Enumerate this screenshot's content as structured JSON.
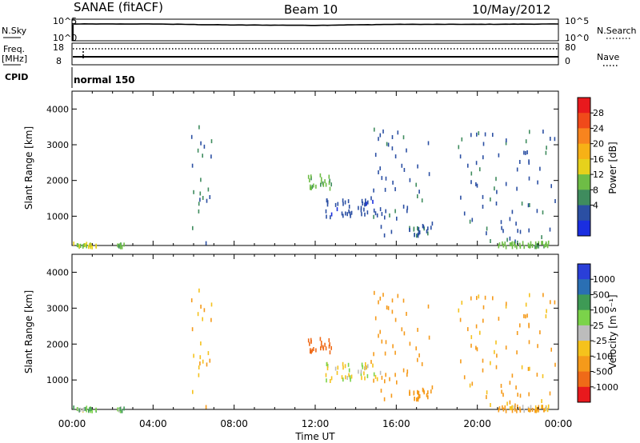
{
  "header": {
    "station": "SANAE (fitACF)",
    "beam": "Beam 10",
    "date": "10/May/2012"
  },
  "top_panels": {
    "nsky_label": "N.Sky",
    "nsearch_label": "N.Search",
    "freq_label": "Freq.",
    "freq_unit": "[MHz]",
    "nave_label": "Nave",
    "cpid_label": "CPID",
    "cpid_value": "normal 150",
    "noise_ticks_left": [
      "10^5",
      "10^0"
    ],
    "noise_ticks_right": [
      "10^5",
      "10^0"
    ],
    "freq_ticks": [
      "18",
      "8"
    ],
    "nave_ticks": [
      "80",
      "0"
    ],
    "freq_mhz": 10.5,
    "nave_level": 0.25
  },
  "x_axis": {
    "label": "Time UT",
    "ticks": [
      "00:00",
      "04:00",
      "08:00",
      "12:00",
      "16:00",
      "20:00",
      "00:00"
    ]
  },
  "colorbars": {
    "power": {
      "label": "Power [dB]",
      "ticks": [
        "28",
        "24",
        "20",
        "16",
        "12",
        "8",
        "4"
      ],
      "colors": [
        "#e8191d",
        "#f04a1a",
        "#f8841e",
        "#f7b116",
        "#e6d11c",
        "#6ebd46",
        "#3f8c5e",
        "#2b4fa3",
        "#1a2ee0"
      ]
    },
    "velocity": {
      "label": "Velocity [m s⁻¹]",
      "ticks": [
        "1000",
        "500",
        "100",
        "25",
        "-25",
        "-100",
        "-500",
        "-1000"
      ],
      "colors": [
        "#2a3fd8",
        "#2a6fb3",
        "#3e9a55",
        "#7bd34a",
        "#bcbcbc",
        "#f5c21c",
        "#f59a1a",
        "#ef6a18",
        "#e8191d"
      ]
    }
  },
  "chart_data": [
    {
      "type": "line",
      "title": "N.Sky / N.Search",
      "x": [
        "00:00",
        "04:00",
        "08:00",
        "12:00",
        "16:00",
        "20:00",
        "00:00"
      ],
      "series": [
        {
          "name": "N.Sky",
          "values": [
            5.0,
            5.0,
            4.7,
            4.6,
            4.9,
            4.9,
            5.0
          ]
        }
      ]
    },
    {
      "type": "scatter",
      "title": "Power [dB]",
      "xlabel": "Time UT",
      "ylabel": "Slant Range [km]",
      "xlim": [
        0,
        24
      ],
      "ylim": [
        180,
        4500
      ],
      "ylim_ticks": [
        1000,
        2000,
        3000,
        4000
      ],
      "legend": "right colorbar",
      "clusters": [
        {
          "t": [
            0.0,
            1.2
          ],
          "r": [
            180,
            300
          ],
          "value": 14
        },
        {
          "t": [
            2.2,
            2.6
          ],
          "r": [
            180,
            280
          ],
          "value": 12
        },
        {
          "t": [
            5.8,
            6.9
          ],
          "r": [
            180,
            3550
          ],
          "value": 6
        },
        {
          "t": [
            11.6,
            12.8
          ],
          "r": [
            1800,
            2200
          ],
          "value": 12
        },
        {
          "t": [
            12.5,
            15.2
          ],
          "r": [
            1000,
            1500
          ],
          "value": 5
        },
        {
          "t": [
            14.7,
            17.8
          ],
          "r": [
            500,
            3500
          ],
          "value": 6
        },
        {
          "t": [
            16.6,
            17.6
          ],
          "r": [
            500,
            800
          ],
          "value": 7
        },
        {
          "t": [
            19.0,
            23.9
          ],
          "r": [
            180,
            3500
          ],
          "value": 6
        },
        {
          "t": [
            21.0,
            23.5
          ],
          "r": [
            180,
            320
          ],
          "value": 12
        }
      ]
    },
    {
      "type": "scatter",
      "title": "Velocity [m s⁻¹]",
      "xlabel": "Time UT",
      "ylabel": "Slant Range [km]",
      "xlim": [
        0,
        24
      ],
      "ylim": [
        180,
        4500
      ],
      "ylim_ticks": [
        1000,
        2000,
        3000,
        4000
      ],
      "legend": "right colorbar",
      "clusters": [
        {
          "t": [
            0.0,
            1.2
          ],
          "r": [
            180,
            300
          ],
          "value": 60
        },
        {
          "t": [
            2.2,
            2.6
          ],
          "r": [
            180,
            280
          ],
          "value": 80
        },
        {
          "t": [
            5.8,
            6.9
          ],
          "r": [
            180,
            3550
          ],
          "value": -150
        },
        {
          "t": [
            11.6,
            12.8
          ],
          "r": [
            1800,
            2200
          ],
          "value": -600
        },
        {
          "t": [
            12.5,
            15.2
          ],
          "r": [
            1000,
            1500
          ],
          "value": 0
        },
        {
          "t": [
            14.7,
            17.8
          ],
          "r": [
            500,
            3500
          ],
          "value": -200
        },
        {
          "t": [
            16.6,
            17.6
          ],
          "r": [
            500,
            800
          ],
          "value": -400
        },
        {
          "t": [
            19.0,
            23.9
          ],
          "r": [
            180,
            3500
          ],
          "value": -150
        },
        {
          "t": [
            21.0,
            23.5
          ],
          "r": [
            180,
            320
          ],
          "value": -100
        }
      ]
    }
  ]
}
